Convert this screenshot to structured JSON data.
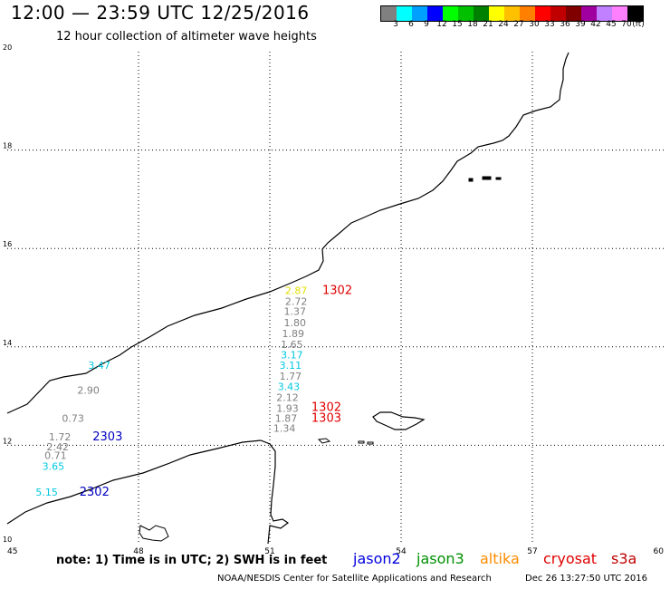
{
  "header": {
    "title": "12:00 — 23:59 UTC 12/25/2016",
    "subtitle": "12 hour collection of altimeter wave heights"
  },
  "colorbar": {
    "colors": [
      "#808080",
      "#00ffff",
      "#00a0ff",
      "#0000ff",
      "#00ff00",
      "#00c000",
      "#008000",
      "#ffff00",
      "#ffc000",
      "#ff8000",
      "#ff0000",
      "#c00000",
      "#800000",
      "#a000a0",
      "#c080ff",
      "#ff80ff",
      "#000000"
    ],
    "labels": [
      "3",
      "6",
      "9",
      "12",
      "15",
      "18",
      "21",
      "24",
      "27",
      "30",
      "33",
      "36",
      "39",
      "42",
      "45",
      "70",
      "(ft)"
    ]
  },
  "axes": {
    "x_ticks": [
      "45",
      "48",
      "51",
      "54",
      "57",
      "60"
    ],
    "y_ticks": [
      "20",
      "18",
      "16",
      "14",
      "12",
      "10"
    ]
  },
  "observations": [
    {
      "text": "2.87",
      "color": "#e0e000",
      "lon": 51.35,
      "lat": 15.07
    },
    {
      "text": "1302",
      "color": "#e00000",
      "lon": 52.2,
      "lat": 15.07
    },
    {
      "text": "2.72",
      "color": "#808080",
      "lon": 51.35,
      "lat": 14.85
    },
    {
      "text": "1.37",
      "color": "#808080",
      "lon": 51.32,
      "lat": 14.65
    },
    {
      "text": "1.80",
      "color": "#808080",
      "lon": 51.32,
      "lat": 14.42
    },
    {
      "text": "1.89",
      "color": "#808080",
      "lon": 51.28,
      "lat": 14.2
    },
    {
      "text": "1.65",
      "color": "#808080",
      "lon": 51.25,
      "lat": 13.98
    },
    {
      "text": "3.17",
      "color": "#00c8e0",
      "lon": 51.25,
      "lat": 13.77
    },
    {
      "text": "3.11",
      "color": "#00c8e0",
      "lon": 51.22,
      "lat": 13.55
    },
    {
      "text": "1.77",
      "color": "#808080",
      "lon": 51.22,
      "lat": 13.33
    },
    {
      "text": "3.43",
      "color": "#00c8e0",
      "lon": 51.18,
      "lat": 13.12
    },
    {
      "text": "2.12",
      "color": "#808080",
      "lon": 51.15,
      "lat": 12.9
    },
    {
      "text": "1302",
      "color": "#e00000",
      "lon": 51.95,
      "lat": 12.7
    },
    {
      "text": "1.93",
      "color": "#808080",
      "lon": 51.15,
      "lat": 12.68
    },
    {
      "text": "1303",
      "color": "#e00000",
      "lon": 51.95,
      "lat": 12.48
    },
    {
      "text": "1.87",
      "color": "#808080",
      "lon": 51.12,
      "lat": 12.48
    },
    {
      "text": "1.34",
      "color": "#808080",
      "lon": 51.08,
      "lat": 12.27
    },
    {
      "text": "3.47",
      "color": "#00c8e0",
      "lon": 46.85,
      "lat": 13.55
    },
    {
      "text": "2.90",
      "color": "#808080",
      "lon": 46.6,
      "lat": 13.05
    },
    {
      "text": "0.73",
      "color": "#808080",
      "lon": 46.25,
      "lat": 12.48
    },
    {
      "text": "1.72",
      "color": "#808080",
      "lon": 45.95,
      "lat": 12.1
    },
    {
      "text": "2303",
      "color": "#0000c0",
      "lon": 46.95,
      "lat": 12.1
    },
    {
      "text": "2.42",
      "color": "#808080",
      "lon": 45.9,
      "lat": 11.9
    },
    {
      "text": "0.71",
      "color": "#808080",
      "lon": 45.85,
      "lat": 11.72
    },
    {
      "text": "3.65",
      "color": "#00c8e0",
      "lon": 45.8,
      "lat": 11.5
    },
    {
      "text": "5.15",
      "color": "#00c8e0",
      "lon": 45.65,
      "lat": 10.98
    },
    {
      "text": "2302",
      "color": "#0000c0",
      "lon": 46.65,
      "lat": 10.98
    }
  ],
  "note": "note:  1) Time is in UTC;  2) SWH is in feet",
  "satellites": [
    {
      "name": "jason2",
      "color": "#0000e0"
    },
    {
      "name": "jason3",
      "color": "#009000"
    },
    {
      "name": "altika",
      "color": "#ff8c00"
    },
    {
      "name": "cryosat",
      "color": "#e00000"
    },
    {
      "name": "s3a",
      "color": "#c00000"
    }
  ],
  "footer": {
    "credit": "NOAA/NESDIS Center for Satellite Applications and Research",
    "timestamp": "Dec 26 13:27:50 UTC 2016"
  }
}
